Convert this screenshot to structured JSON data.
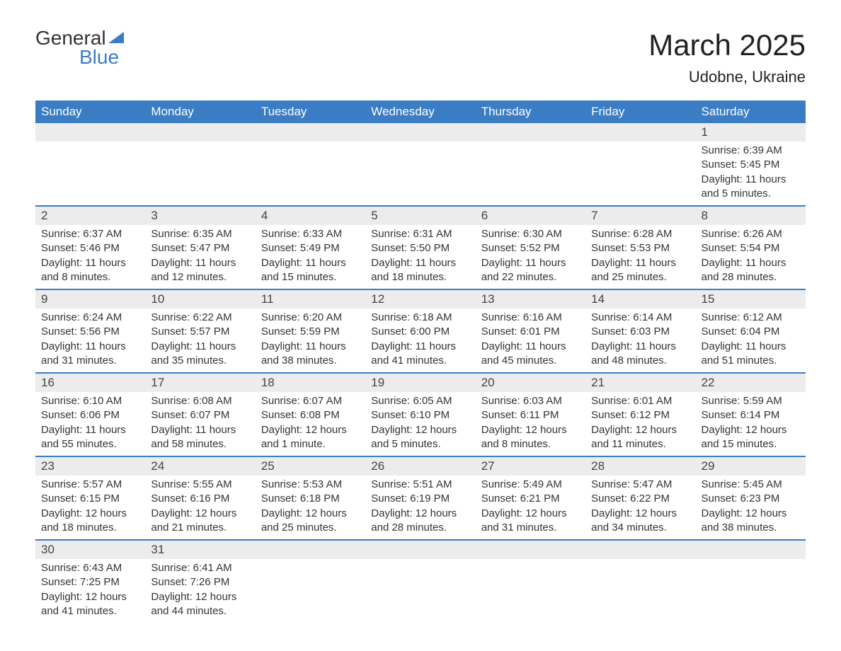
{
  "logo": {
    "text_general": "General",
    "text_blue": "Blue",
    "accent_color": "#3b7dc4"
  },
  "title": "March 2025",
  "location": "Udobne, Ukraine",
  "colors": {
    "header_bg": "#3b7dc4",
    "header_text": "#ffffff",
    "daynum_bg": "#ececec",
    "row_border": "#3b7dc4",
    "body_text": "#333333",
    "page_bg": "#ffffff"
  },
  "days_of_week": [
    "Sunday",
    "Monday",
    "Tuesday",
    "Wednesday",
    "Thursday",
    "Friday",
    "Saturday"
  ],
  "weeks": [
    [
      null,
      null,
      null,
      null,
      null,
      null,
      {
        "n": "1",
        "sunrise": "Sunrise: 6:39 AM",
        "sunset": "Sunset: 5:45 PM",
        "daylight": "Daylight: 11 hours and 5 minutes."
      }
    ],
    [
      {
        "n": "2",
        "sunrise": "Sunrise: 6:37 AM",
        "sunset": "Sunset: 5:46 PM",
        "daylight": "Daylight: 11 hours and 8 minutes."
      },
      {
        "n": "3",
        "sunrise": "Sunrise: 6:35 AM",
        "sunset": "Sunset: 5:47 PM",
        "daylight": "Daylight: 11 hours and 12 minutes."
      },
      {
        "n": "4",
        "sunrise": "Sunrise: 6:33 AM",
        "sunset": "Sunset: 5:49 PM",
        "daylight": "Daylight: 11 hours and 15 minutes."
      },
      {
        "n": "5",
        "sunrise": "Sunrise: 6:31 AM",
        "sunset": "Sunset: 5:50 PM",
        "daylight": "Daylight: 11 hours and 18 minutes."
      },
      {
        "n": "6",
        "sunrise": "Sunrise: 6:30 AM",
        "sunset": "Sunset: 5:52 PM",
        "daylight": "Daylight: 11 hours and 22 minutes."
      },
      {
        "n": "7",
        "sunrise": "Sunrise: 6:28 AM",
        "sunset": "Sunset: 5:53 PM",
        "daylight": "Daylight: 11 hours and 25 minutes."
      },
      {
        "n": "8",
        "sunrise": "Sunrise: 6:26 AM",
        "sunset": "Sunset: 5:54 PM",
        "daylight": "Daylight: 11 hours and 28 minutes."
      }
    ],
    [
      {
        "n": "9",
        "sunrise": "Sunrise: 6:24 AM",
        "sunset": "Sunset: 5:56 PM",
        "daylight": "Daylight: 11 hours and 31 minutes."
      },
      {
        "n": "10",
        "sunrise": "Sunrise: 6:22 AM",
        "sunset": "Sunset: 5:57 PM",
        "daylight": "Daylight: 11 hours and 35 minutes."
      },
      {
        "n": "11",
        "sunrise": "Sunrise: 6:20 AM",
        "sunset": "Sunset: 5:59 PM",
        "daylight": "Daylight: 11 hours and 38 minutes."
      },
      {
        "n": "12",
        "sunrise": "Sunrise: 6:18 AM",
        "sunset": "Sunset: 6:00 PM",
        "daylight": "Daylight: 11 hours and 41 minutes."
      },
      {
        "n": "13",
        "sunrise": "Sunrise: 6:16 AM",
        "sunset": "Sunset: 6:01 PM",
        "daylight": "Daylight: 11 hours and 45 minutes."
      },
      {
        "n": "14",
        "sunrise": "Sunrise: 6:14 AM",
        "sunset": "Sunset: 6:03 PM",
        "daylight": "Daylight: 11 hours and 48 minutes."
      },
      {
        "n": "15",
        "sunrise": "Sunrise: 6:12 AM",
        "sunset": "Sunset: 6:04 PM",
        "daylight": "Daylight: 11 hours and 51 minutes."
      }
    ],
    [
      {
        "n": "16",
        "sunrise": "Sunrise: 6:10 AM",
        "sunset": "Sunset: 6:06 PM",
        "daylight": "Daylight: 11 hours and 55 minutes."
      },
      {
        "n": "17",
        "sunrise": "Sunrise: 6:08 AM",
        "sunset": "Sunset: 6:07 PM",
        "daylight": "Daylight: 11 hours and 58 minutes."
      },
      {
        "n": "18",
        "sunrise": "Sunrise: 6:07 AM",
        "sunset": "Sunset: 6:08 PM",
        "daylight": "Daylight: 12 hours and 1 minute."
      },
      {
        "n": "19",
        "sunrise": "Sunrise: 6:05 AM",
        "sunset": "Sunset: 6:10 PM",
        "daylight": "Daylight: 12 hours and 5 minutes."
      },
      {
        "n": "20",
        "sunrise": "Sunrise: 6:03 AM",
        "sunset": "Sunset: 6:11 PM",
        "daylight": "Daylight: 12 hours and 8 minutes."
      },
      {
        "n": "21",
        "sunrise": "Sunrise: 6:01 AM",
        "sunset": "Sunset: 6:12 PM",
        "daylight": "Daylight: 12 hours and 11 minutes."
      },
      {
        "n": "22",
        "sunrise": "Sunrise: 5:59 AM",
        "sunset": "Sunset: 6:14 PM",
        "daylight": "Daylight: 12 hours and 15 minutes."
      }
    ],
    [
      {
        "n": "23",
        "sunrise": "Sunrise: 5:57 AM",
        "sunset": "Sunset: 6:15 PM",
        "daylight": "Daylight: 12 hours and 18 minutes."
      },
      {
        "n": "24",
        "sunrise": "Sunrise: 5:55 AM",
        "sunset": "Sunset: 6:16 PM",
        "daylight": "Daylight: 12 hours and 21 minutes."
      },
      {
        "n": "25",
        "sunrise": "Sunrise: 5:53 AM",
        "sunset": "Sunset: 6:18 PM",
        "daylight": "Daylight: 12 hours and 25 minutes."
      },
      {
        "n": "26",
        "sunrise": "Sunrise: 5:51 AM",
        "sunset": "Sunset: 6:19 PM",
        "daylight": "Daylight: 12 hours and 28 minutes."
      },
      {
        "n": "27",
        "sunrise": "Sunrise: 5:49 AM",
        "sunset": "Sunset: 6:21 PM",
        "daylight": "Daylight: 12 hours and 31 minutes."
      },
      {
        "n": "28",
        "sunrise": "Sunrise: 5:47 AM",
        "sunset": "Sunset: 6:22 PM",
        "daylight": "Daylight: 12 hours and 34 minutes."
      },
      {
        "n": "29",
        "sunrise": "Sunrise: 5:45 AM",
        "sunset": "Sunset: 6:23 PM",
        "daylight": "Daylight: 12 hours and 38 minutes."
      }
    ],
    [
      {
        "n": "30",
        "sunrise": "Sunrise: 6:43 AM",
        "sunset": "Sunset: 7:25 PM",
        "daylight": "Daylight: 12 hours and 41 minutes."
      },
      {
        "n": "31",
        "sunrise": "Sunrise: 6:41 AM",
        "sunset": "Sunset: 7:26 PM",
        "daylight": "Daylight: 12 hours and 44 minutes."
      },
      null,
      null,
      null,
      null,
      null
    ]
  ]
}
